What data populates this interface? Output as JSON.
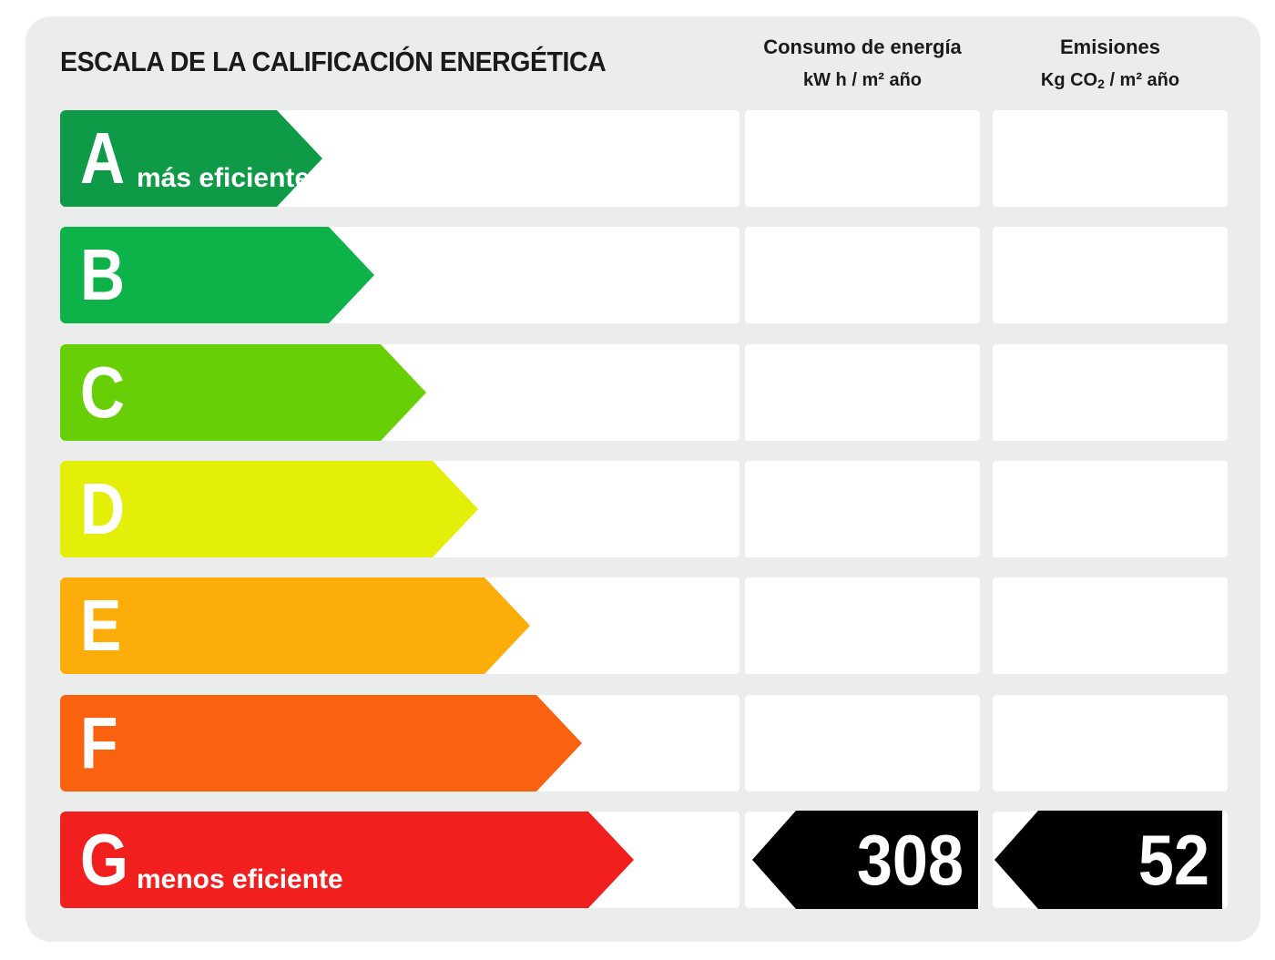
{
  "title": "ESCALA DE LA CALIFICACIÓN ENERGÉTICA",
  "columns": {
    "energy": {
      "label": "Consumo de energía",
      "unit": "kW h / m² año"
    },
    "emissions": {
      "label": "Emisiones",
      "unit_prefix": "Kg CO",
      "unit_sub": "2",
      "unit_suffix": " / m² año"
    }
  },
  "ratings": [
    {
      "letter": "A",
      "sub": "más eficiente",
      "color": "#0f9a47"
    },
    {
      "letter": "B",
      "sub": "",
      "color": "#0db249"
    },
    {
      "letter": "C",
      "sub": "",
      "color": "#67cf05"
    },
    {
      "letter": "D",
      "sub": "",
      "color": "#e4ef09"
    },
    {
      "letter": "E",
      "sub": "",
      "color": "#fcad0a"
    },
    {
      "letter": "F",
      "sub": "",
      "color": "#fa620f"
    },
    {
      "letter": "G",
      "sub": "menos eficiente",
      "color": "#f21f1f"
    }
  ],
  "result": {
    "rating": "G",
    "energy_value": "308",
    "emissions_value": "52",
    "marker_color": "#000000"
  }
}
